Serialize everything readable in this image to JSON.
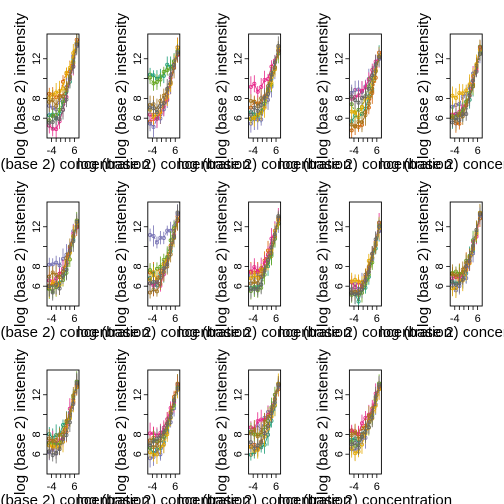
{
  "chart_data": {
    "type": "scatter",
    "description_layout": "grid",
    "grid": {
      "rows": 3,
      "cols": 5,
      "panels_present": 14
    },
    "xlabel": "log (base 2) concentration",
    "ylabel": "log (base 2) instensity",
    "xticks": [
      -4,
      6
    ],
    "yticks": [
      6,
      8,
      12
    ],
    "xlim": [
      -6,
      8
    ],
    "ylim": [
      4,
      14.5
    ],
    "series_colors": [
      "#1B9E77",
      "#D95F02",
      "#7570B3",
      "#E7298A",
      "#66A61E",
      "#E6AB02",
      "#A6761D",
      "#666666"
    ],
    "x_points": [
      -5,
      -3.5,
      -2,
      -0.5,
      1,
      2.5,
      4,
      5.5,
      7
    ],
    "panels": [
      {
        "baselines": [
          6.3,
          8.4,
          7.2,
          5.3,
          6.0,
          8.5,
          7.5,
          5.8
        ],
        "top": 13.5
      },
      {
        "baselines": [
          10.2,
          6.0,
          5.5,
          6.2,
          9.8,
          6.5,
          7.0,
          6.8
        ],
        "top": 12.8
      },
      {
        "baselines": [
          6.5,
          7.2,
          5.9,
          9.1,
          6.3,
          6.0,
          7.5,
          6.8
        ],
        "top": 12.9
      },
      {
        "baselines": [
          6.0,
          5.0,
          8.8,
          8.3,
          7.0,
          6.5,
          5.5,
          7.8
        ],
        "top": 12.4
      },
      {
        "baselines": [
          6.1,
          5.8,
          7.5,
          6.5,
          6.2,
          8.2,
          6.0,
          5.6
        ],
        "top": 12.8
      },
      {
        "baselines": [
          6.0,
          6.5,
          8.0,
          6.8,
          5.5,
          6.2,
          7.0,
          5.8
        ],
        "top": 12.3
      },
      {
        "baselines": [
          6.5,
          7.0,
          10.8,
          6.0,
          7.5,
          6.8,
          5.8,
          6.2
        ],
        "top": 13.0
      },
      {
        "baselines": [
          6.2,
          7.5,
          6.8,
          7.8,
          5.8,
          7.0,
          6.5,
          6.0
        ],
        "top": 12.7
      },
      {
        "baselines": [
          4.9,
          5.5,
          5.8,
          6.0,
          5.2,
          6.2,
          5.7,
          5.4
        ],
        "top": 12.0
      },
      {
        "baselines": [
          6.5,
          7.2,
          6.0,
          6.8,
          7.5,
          6.2,
          7.0,
          6.6
        ],
        "top": 13.0
      },
      {
        "baselines": [
          7.8,
          6.5,
          6.2,
          7.0,
          6.8,
          6.5,
          7.2,
          6.0
        ],
        "top": 13.0
      },
      {
        "baselines": [
          6.5,
          7.5,
          6.0,
          8.0,
          7.0,
          6.2,
          6.8,
          7.3
        ],
        "top": 12.8
      },
      {
        "baselines": [
          6.2,
          7.0,
          8.5,
          9.0,
          7.8,
          6.5,
          8.2,
          6.8
        ],
        "top": 12.9
      },
      {
        "baselines": [
          7.5,
          8.0,
          6.8,
          8.5,
          7.2,
          6.5,
          7.8,
          7.0
        ],
        "top": 13.0
      }
    ]
  }
}
